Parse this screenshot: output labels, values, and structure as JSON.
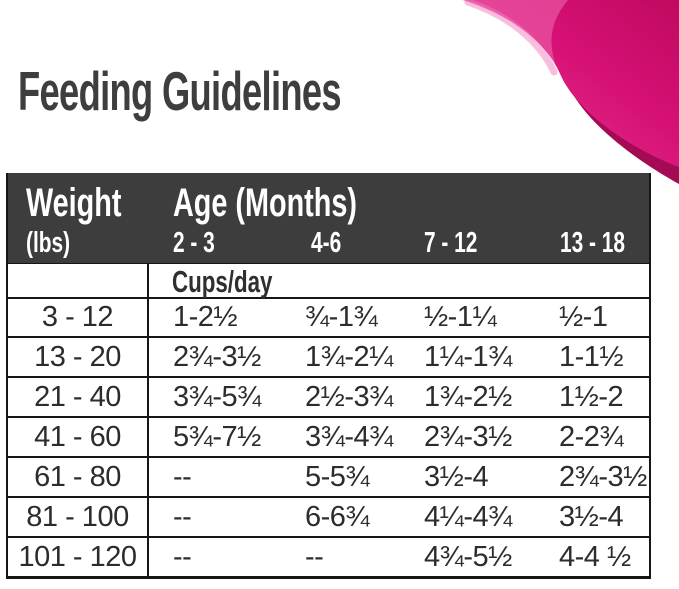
{
  "page": {
    "title": "Feeding Guidelines"
  },
  "colors": {
    "accent_pink_light": "#f06cb3",
    "accent_pink": "#d91277",
    "accent_pink_dark": "#a50a55",
    "header_bg": "#3d3d3d",
    "header_text": "#ffffff",
    "title_text": "#3e3e3e",
    "data_text": "#2c2c2c",
    "border": "#161616"
  },
  "decor": {
    "swoosh_name": "pink-wave-corner"
  },
  "table": {
    "header": {
      "col1_line1": "Weight",
      "col1_line2": "(lbs)",
      "age_group_label": "Age (Months)",
      "age_columns": [
        "2 - 3",
        "4-6",
        "7 - 12",
        "13 - 18"
      ]
    },
    "units_label": "Cups/day",
    "rows": [
      {
        "weight": "3 - 12",
        "values": [
          "1-2½",
          "¾-1¾",
          "½-1¼",
          "½-1"
        ]
      },
      {
        "weight": "13 - 20",
        "values": [
          "2¾-3½",
          "1¾-2¼",
          "1¼-1¾",
          "1-1½"
        ]
      },
      {
        "weight": "21 - 40",
        "values": [
          "3¾-5¾",
          "2½-3¾",
          "1¾-2½",
          "1½-2"
        ]
      },
      {
        "weight": "41 - 60",
        "values": [
          "5¾-7½",
          "3¾-4¾",
          "2¾-3½",
          "2-2¾"
        ]
      },
      {
        "weight": "61 - 80",
        "values": [
          "--",
          "5-5¾",
          "3½-4",
          "2¾-3½"
        ]
      },
      {
        "weight": "81 - 100",
        "values": [
          "--",
          "6-6¾",
          "4¼-4¾",
          "3½-4"
        ]
      },
      {
        "weight": "101 - 120",
        "values": [
          "--",
          "--",
          "4¾-5½",
          "4-4 ½"
        ]
      }
    ]
  }
}
